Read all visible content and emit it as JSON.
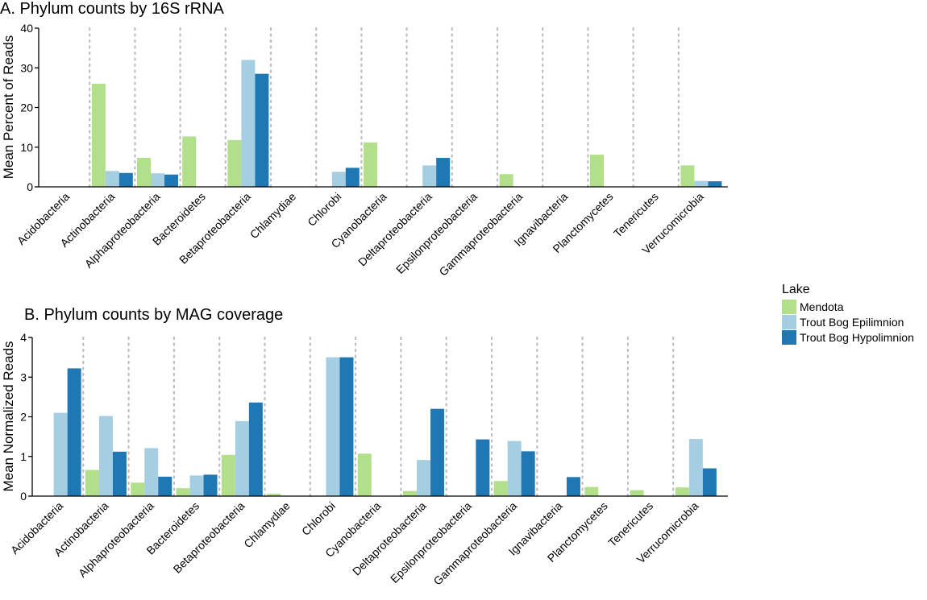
{
  "chart_data": [
    {
      "type": "bar",
      "title": "A. Phylum counts by 16S rRNA",
      "xlabel": "",
      "ylabel": "Mean Percent of Reads",
      "ylim": [
        0,
        40
      ],
      "yticks": [
        0,
        10,
        20,
        30,
        40
      ],
      "grid": "vertical dotted between categories",
      "categories": [
        "Acidobacteria",
        "Actinobacteria",
        "Alphaproteobacteria",
        "Bacteroidetes",
        "Betaproteobacteria",
        "Chlamydiae",
        "Chlorobi",
        "Cyanobacteria",
        "Deltaproteobacteria",
        "Epsilonproteobacteria",
        "Gammaproteobacteria",
        "Ignavibacteria",
        "Planctomycetes",
        "Tenericutes",
        "Verrucomicrobia"
      ],
      "series": [
        {
          "name": "Mendota",
          "values": [
            0,
            26,
            7.3,
            12.7,
            11.8,
            0,
            0,
            11.2,
            0,
            0,
            3.2,
            0,
            8.1,
            0,
            5.4
          ]
        },
        {
          "name": "Trout Bog Epilimnion",
          "values": [
            0,
            4.0,
            3.4,
            0,
            32.0,
            0,
            3.8,
            0,
            5.4,
            0,
            0,
            0,
            0,
            0,
            1.5
          ]
        },
        {
          "name": "Trout Bog Hypolimnion",
          "values": [
            0,
            3.5,
            3.1,
            0,
            28.5,
            0,
            4.8,
            0,
            7.3,
            0,
            0,
            0,
            0,
            0,
            1.4
          ]
        }
      ]
    },
    {
      "type": "bar",
      "title": "B. Phylum counts by MAG coverage",
      "xlabel": "",
      "ylabel": "Mean Normalized Reads",
      "ylim": [
        0,
        4
      ],
      "yticks": [
        0,
        1,
        2,
        3,
        4
      ],
      "grid": "vertical dotted between categories",
      "categories": [
        "Acidobacteria",
        "Actinobacteria",
        "Alphaproteobacteria",
        "Bacteroidetes",
        "Betaproteobacteria",
        "Chlamydiae",
        "Chlorobi",
        "Cyanobacteria",
        "Deltaproteobacteria",
        "Epsilonproteobacteria",
        "Gammaproteobacteria",
        "Ignavibacteria",
        "Planctomycetes",
        "Tenericutes",
        "Verrucomicrobia"
      ],
      "series": [
        {
          "name": "Mendota",
          "values": [
            0,
            0.66,
            0.34,
            0.2,
            1.04,
            0.06,
            0,
            1.07,
            0.13,
            0,
            0.38,
            0,
            0.23,
            0.15,
            0.22
          ]
        },
        {
          "name": "Trout Bog Epilimnion",
          "values": [
            2.1,
            2.02,
            1.21,
            0.52,
            1.89,
            0,
            3.5,
            0,
            0.91,
            0,
            1.39,
            0,
            0,
            0,
            1.44
          ]
        },
        {
          "name": "Trout Bog Hypolimnion",
          "values": [
            3.22,
            1.12,
            0.49,
            0.54,
            2.36,
            0,
            3.5,
            0,
            2.2,
            1.43,
            1.13,
            0.48,
            0,
            0,
            0.7
          ]
        }
      ]
    }
  ],
  "legend": {
    "title": "Lake",
    "position": "right",
    "items": [
      {
        "label": "Mendota",
        "color": "#b2df8a"
      },
      {
        "label": "Trout Bog Epilimnion",
        "color": "#a6cee3"
      },
      {
        "label": "Trout Bog Hypolimnion",
        "color": "#1f78b4"
      }
    ]
  },
  "colors": {
    "series": [
      "#b2df8a",
      "#a6cee3",
      "#1f78b4"
    ],
    "gridline": "#bdbdbd",
    "axis": "#000000"
  }
}
